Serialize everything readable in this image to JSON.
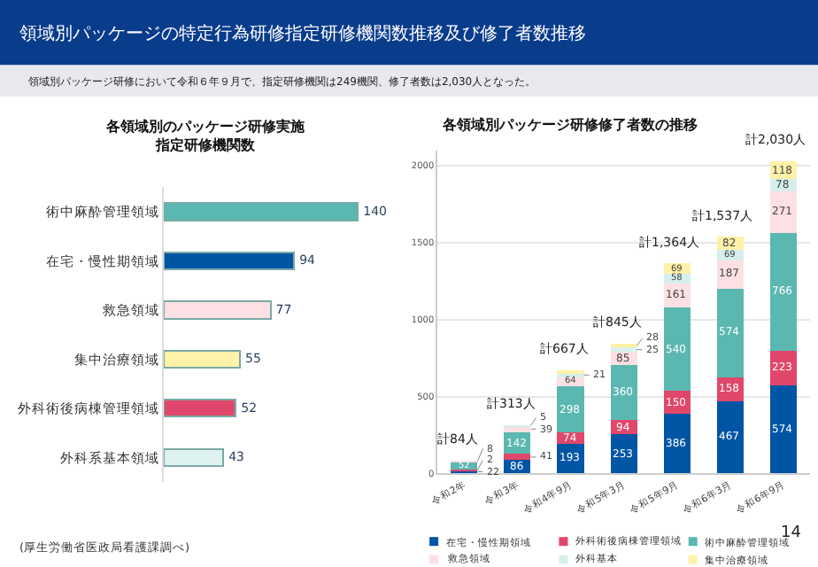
{
  "chart_data": [
    {
      "type": "bar",
      "orientation": "horizontal",
      "title": "各領域別のパッケージ研修実施指定研修機関数",
      "categories": [
        "術中麻酔管理領域",
        "在宅・慢性期領域",
        "救急領域",
        "集中治療領域",
        "外科術後病棟管理領域",
        "外科系基本領域"
      ],
      "values": [
        140,
        94,
        77,
        55,
        52,
        43
      ],
      "colors": [
        "#5bb8b0",
        "#0055a5",
        "#fde0e3",
        "#fff2a8",
        "#e0476a",
        "#def2f0"
      ],
      "data_labels": true,
      "annotations": [
        "領域別パッケージの特定行為研修指定研修機関数推移及び修了者数推移",
        "領域別パッケージ研修において令和６年９月で、指定研修機関は249機関、修了者数は2,030人となった。",
        "(厚生労働省医政局看護課調べ)",
        "14"
      ]
    },
    {
      "type": "bar",
      "stacked": true,
      "title": "各領域別パッケージ研修修了者数の推移",
      "categories": [
        "令和2年",
        "令和3年",
        "令和4年9月",
        "令和5年3月",
        "令和5年9月",
        "令和6年3月",
        "令和6年9月"
      ],
      "ylim": [
        0,
        2100
      ],
      "yticks": [
        0,
        500,
        1000,
        1500,
        2000
      ],
      "grid": "y",
      "legend": "bottom",
      "totals": [
        "計84人",
        "計313人",
        "計667人",
        "計845人",
        "計1,364人",
        "計1,537人",
        "計2,030人"
      ],
      "series": [
        {
          "name": "在宅・慢性期領域",
          "color": "#0055a5",
          "values": [
            22,
            86,
            193,
            253,
            386,
            467,
            574
          ],
          "value_labels": [
            "22",
            "86",
            "193",
            "253",
            "386",
            "467",
            "574"
          ]
        },
        {
          "name": "外科術後病棟管理領域",
          "color": "#e0476a",
          "values": [
            2,
            41,
            74,
            94,
            150,
            158,
            223
          ],
          "value_labels": [
            "2",
            "41",
            "74",
            "94",
            "150",
            "158",
            "223"
          ]
        },
        {
          "name": "術中麻酔管理領域",
          "color": "#5bb8b0",
          "values": [
            52,
            142,
            298,
            360,
            540,
            574,
            766
          ],
          "value_labels": [
            "52",
            "142",
            "298",
            "360",
            "540",
            "574",
            "766"
          ]
        },
        {
          "name": "救急領域",
          "color": "#fde0e3",
          "values": [
            8,
            39,
            64,
            85,
            161,
            187,
            271
          ],
          "value_labels": [
            "8",
            "39",
            "64",
            "85",
            "161",
            "187",
            "271"
          ]
        },
        {
          "name": "外科基本",
          "color": "#d6efed",
          "values": [
            null,
            5,
            21,
            25,
            58,
            69,
            78
          ],
          "value_labels": [
            null,
            "5",
            "21",
            "25",
            "58",
            "69",
            "78"
          ]
        },
        {
          "name": "集中治療領域",
          "color": "#fff2a8",
          "values": [
            null,
            null,
            17,
            28,
            69,
            82,
            118
          ],
          "value_labels": [
            null,
            null,
            null,
            "28",
            "69",
            "82",
            "118"
          ]
        }
      ]
    }
  ]
}
